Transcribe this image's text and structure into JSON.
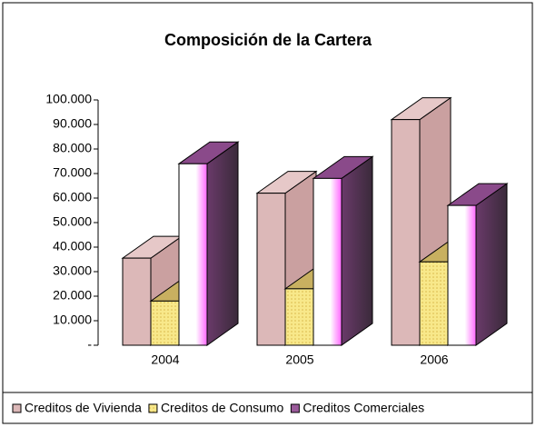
{
  "chart_data": {
    "type": "bar3d",
    "title": "Composición de la Cartera",
    "categories": [
      "2004",
      "2005",
      "2006"
    ],
    "series": [
      {
        "name": "Creditos de Vivienda",
        "color": "#dcb8b8",
        "values": [
          35500,
          62000,
          92000
        ]
      },
      {
        "name": "Creditos de Consumo",
        "color": "#f5e07a",
        "values": [
          18000,
          23000,
          34000
        ]
      },
      {
        "name": "Creditos Comerciales",
        "color": "#9a5a9a",
        "values": [
          74000,
          68000,
          57000
        ]
      }
    ],
    "ylim": [
      0,
      100000
    ],
    "yticks": [
      {
        "value": 0,
        "label": "-"
      },
      {
        "value": 10000,
        "label": "10.000"
      },
      {
        "value": 20000,
        "label": "20.000"
      },
      {
        "value": 30000,
        "label": "30.000"
      },
      {
        "value": 40000,
        "label": "40.000"
      },
      {
        "value": 50000,
        "label": "50.000"
      },
      {
        "value": 60000,
        "label": "60.000"
      },
      {
        "value": 70000,
        "label": "70.000"
      },
      {
        "value": 80000,
        "label": "80.000"
      },
      {
        "value": 90000,
        "label": "90.000"
      },
      {
        "value": 100000,
        "label": "100.000"
      }
    ],
    "legend": "bottom"
  }
}
